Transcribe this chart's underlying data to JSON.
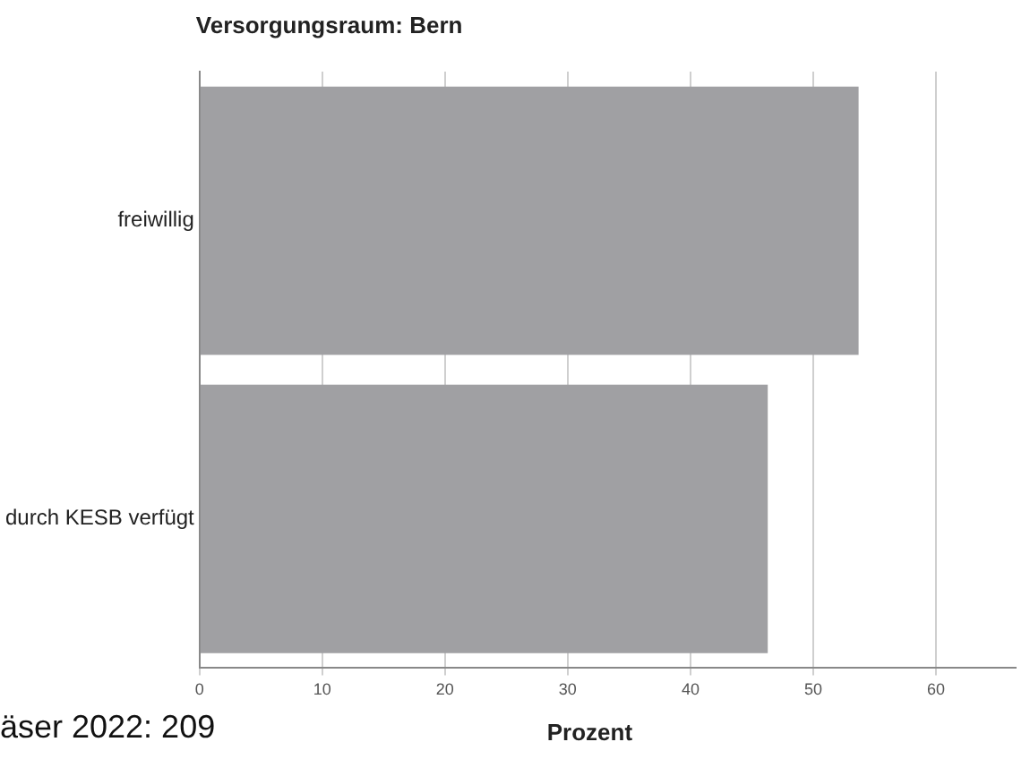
{
  "chart_data": {
    "type": "bar",
    "orientation": "horizontal",
    "title": "Versorgungsraum: Bern",
    "xlabel": "Prozent",
    "categories": [
      "freiwillig",
      "durch KESB verfügt"
    ],
    "values": [
      53.7,
      46.3
    ],
    "color": "#a0a0a3",
    "xlim": [
      0,
      66.5
    ],
    "xticks": [
      0,
      10,
      20,
      30,
      40,
      50,
      60
    ],
    "grid": "x",
    "legend": false,
    "annotations": [
      "äser 2022: 209"
    ]
  }
}
